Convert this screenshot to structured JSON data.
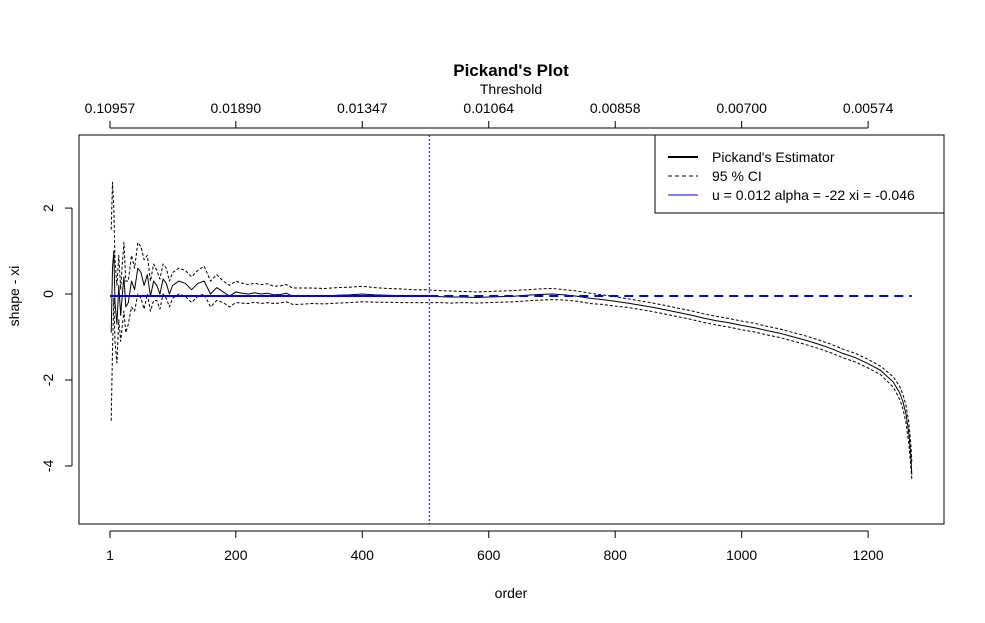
{
  "chart_data": {
    "type": "line",
    "title": "Pickand's Plot",
    "xlabel": "order",
    "ylabel": "shape - xi",
    "top_axis_label": "Threshold",
    "xlim": [
      -48,
      1320
    ],
    "ylim": [
      -5.35,
      3.7
    ],
    "x_ticks": [
      1,
      200,
      400,
      600,
      800,
      1000,
      1200
    ],
    "y_ticks": [
      -4,
      -2,
      0,
      2
    ],
    "top_ticks": [
      {
        "order": 1,
        "label": "0.10957"
      },
      {
        "order": 200,
        "label": "0.01890"
      },
      {
        "order": 400,
        "label": "0.01347"
      },
      {
        "order": 600,
        "label": "0.01064"
      },
      {
        "order": 800,
        "label": "0.00858"
      },
      {
        "order": 1000,
        "label": "0.00700"
      },
      {
        "order": 1200,
        "label": "0.00574"
      }
    ],
    "vline_x": 506,
    "hline_y": -0.046,
    "hline_xrange": [
      1,
      1269
    ],
    "legend": {
      "placement": "top-right",
      "items": [
        {
          "label": "Pickand's Estimator",
          "style": "solid",
          "color": "#000000"
        },
        {
          "label": "95 % CI",
          "style": "dashed",
          "color": "#000000"
        },
        {
          "label": "u = 0.012 alpha = -22 xi = -0.046",
          "style": "solid",
          "color": "#0000ff"
        }
      ]
    },
    "series": [
      {
        "role": "estimate",
        "color": "#000000",
        "style": "solid",
        "x": [
          3,
          5,
          7,
          9,
          12,
          15,
          18,
          20,
          23,
          26,
          30,
          35,
          40,
          45,
          50,
          55,
          60,
          65,
          70,
          75,
          80,
          85,
          90,
          95,
          100,
          110,
          120,
          130,
          140,
          150,
          160,
          170,
          180,
          190,
          200,
          210,
          220,
          230,
          240,
          250,
          260,
          270,
          280,
          290,
          300,
          320,
          340,
          360,
          380,
          400,
          420,
          440,
          460,
          480,
          500,
          520,
          540,
          560,
          580,
          600,
          620,
          640,
          660,
          680,
          700,
          720,
          740,
          760,
          780,
          800,
          820,
          840,
          860,
          880,
          900,
          920,
          940,
          960,
          980,
          1000,
          1020,
          1040,
          1060,
          1080,
          1100,
          1120,
          1140,
          1160,
          1180,
          1200,
          1220,
          1240,
          1250,
          1255,
          1260,
          1262,
          1264,
          1266,
          1268,
          1269
        ],
        "y": [
          -0.9,
          0.6,
          1.0,
          -0.2,
          -0.7,
          0.2,
          -0.5,
          -0.1,
          0.4,
          -0.3,
          -0.2,
          0.3,
          0.1,
          0.6,
          0.5,
          0.2,
          0.45,
          -0.05,
          0.3,
          0.2,
          0.0,
          0.35,
          0.25,
          0.0,
          0.2,
          0.3,
          0.25,
          0.1,
          0.25,
          0.3,
          0.0,
          0.15,
          0.05,
          -0.05,
          0.05,
          0.02,
          0.0,
          0.03,
          0.0,
          0.02,
          -0.02,
          -0.01,
          0.02,
          -0.05,
          -0.05,
          -0.04,
          -0.05,
          -0.03,
          -0.02,
          0.0,
          -0.02,
          -0.03,
          -0.04,
          -0.05,
          -0.05,
          -0.06,
          -0.07,
          -0.07,
          -0.08,
          -0.07,
          -0.06,
          -0.05,
          -0.03,
          -0.01,
          0.0,
          -0.02,
          -0.05,
          -0.1,
          -0.13,
          -0.17,
          -0.21,
          -0.26,
          -0.31,
          -0.37,
          -0.43,
          -0.49,
          -0.56,
          -0.62,
          -0.67,
          -0.73,
          -0.78,
          -0.85,
          -0.91,
          -0.99,
          -1.07,
          -1.16,
          -1.26,
          -1.38,
          -1.48,
          -1.62,
          -1.78,
          -2.05,
          -2.3,
          -2.5,
          -2.8,
          -3.0,
          -3.2,
          -3.5,
          -3.85,
          -4.2
        ]
      },
      {
        "role": "ci_upper",
        "color": "#000000",
        "style": "dashed",
        "x": [
          3,
          5,
          7,
          9,
          12,
          15,
          18,
          20,
          23,
          26,
          30,
          35,
          40,
          45,
          50,
          55,
          60,
          65,
          70,
          75,
          80,
          85,
          90,
          95,
          100,
          110,
          120,
          130,
          140,
          150,
          160,
          170,
          180,
          190,
          200,
          210,
          220,
          230,
          240,
          250,
          260,
          270,
          280,
          290,
          300,
          320,
          340,
          360,
          380,
          400,
          420,
          440,
          460,
          480,
          500,
          520,
          540,
          560,
          580,
          600,
          620,
          640,
          660,
          680,
          700,
          720,
          740,
          760,
          780,
          800,
          820,
          840,
          860,
          880,
          900,
          920,
          940,
          960,
          980,
          1000,
          1020,
          1040,
          1060,
          1080,
          1100,
          1120,
          1140,
          1160,
          1180,
          1200,
          1220,
          1240,
          1250,
          1255,
          1260,
          1262,
          1264,
          1266,
          1268,
          1269
        ],
        "y": [
          1.5,
          2.6,
          2.0,
          0.8,
          0.2,
          0.9,
          0.1,
          0.6,
          1.2,
          0.3,
          0.3,
          0.9,
          0.6,
          1.2,
          1.1,
          0.8,
          0.9,
          0.3,
          0.7,
          0.55,
          0.35,
          0.7,
          0.6,
          0.3,
          0.5,
          0.6,
          0.55,
          0.4,
          0.55,
          0.65,
          0.3,
          0.45,
          0.3,
          0.2,
          0.3,
          0.25,
          0.22,
          0.25,
          0.22,
          0.24,
          0.18,
          0.19,
          0.22,
          0.14,
          0.14,
          0.14,
          0.13,
          0.15,
          0.16,
          0.18,
          0.15,
          0.13,
          0.12,
          0.1,
          0.1,
          0.08,
          0.07,
          0.06,
          0.05,
          0.06,
          0.07,
          0.08,
          0.1,
          0.12,
          0.13,
          0.1,
          0.07,
          0.02,
          -0.02,
          -0.06,
          -0.11,
          -0.16,
          -0.21,
          -0.27,
          -0.33,
          -0.39,
          -0.46,
          -0.52,
          -0.57,
          -0.63,
          -0.68,
          -0.75,
          -0.81,
          -0.89,
          -0.97,
          -1.06,
          -1.16,
          -1.28,
          -1.38,
          -1.52,
          -1.68,
          -1.93,
          -2.15,
          -2.33,
          -2.6,
          -2.78,
          -2.95,
          -3.25,
          -3.58,
          -3.9
        ]
      },
      {
        "role": "ci_lower",
        "color": "#000000",
        "style": "dashed",
        "x": [
          3,
          5,
          7,
          9,
          12,
          15,
          18,
          20,
          23,
          26,
          30,
          35,
          40,
          45,
          50,
          55,
          60,
          65,
          70,
          75,
          80,
          85,
          90,
          95,
          100,
          110,
          120,
          130,
          140,
          150,
          160,
          170,
          180,
          190,
          200,
          210,
          220,
          230,
          240,
          250,
          260,
          270,
          280,
          290,
          300,
          320,
          340,
          360,
          380,
          400,
          420,
          440,
          460,
          480,
          500,
          520,
          540,
          560,
          580,
          600,
          620,
          640,
          660,
          680,
          700,
          720,
          740,
          760,
          780,
          800,
          820,
          840,
          860,
          880,
          900,
          920,
          940,
          960,
          980,
          1000,
          1020,
          1040,
          1060,
          1080,
          1100,
          1120,
          1140,
          1160,
          1180,
          1200,
          1220,
          1240,
          1250,
          1255,
          1260,
          1262,
          1264,
          1266,
          1268,
          1269
        ],
        "y": [
          -2.95,
          -1.3,
          -0.1,
          -1.1,
          -1.6,
          -0.6,
          -1.1,
          -0.8,
          -0.4,
          -0.9,
          -0.7,
          -0.3,
          -0.4,
          0.0,
          -0.1,
          -0.35,
          0.0,
          -0.4,
          -0.15,
          -0.15,
          -0.35,
          0.0,
          -0.1,
          -0.3,
          -0.1,
          0.0,
          -0.05,
          -0.2,
          -0.05,
          0.0,
          -0.3,
          -0.15,
          -0.2,
          -0.3,
          -0.2,
          -0.21,
          -0.22,
          -0.19,
          -0.22,
          -0.2,
          -0.22,
          -0.21,
          -0.18,
          -0.24,
          -0.24,
          -0.22,
          -0.23,
          -0.21,
          -0.2,
          -0.18,
          -0.19,
          -0.19,
          -0.2,
          -0.2,
          -0.2,
          -0.2,
          -0.21,
          -0.2,
          -0.21,
          -0.2,
          -0.19,
          -0.18,
          -0.16,
          -0.14,
          -0.13,
          -0.14,
          -0.17,
          -0.22,
          -0.24,
          -0.28,
          -0.31,
          -0.36,
          -0.41,
          -0.47,
          -0.53,
          -0.59,
          -0.66,
          -0.72,
          -0.77,
          -0.83,
          -0.88,
          -0.95,
          -1.01,
          -1.09,
          -1.17,
          -1.26,
          -1.36,
          -1.48,
          -1.58,
          -1.72,
          -1.88,
          -2.17,
          -2.45,
          -2.67,
          -3.0,
          -3.22,
          -3.45,
          -3.75,
          -4.1,
          -4.3
        ]
      }
    ]
  }
}
